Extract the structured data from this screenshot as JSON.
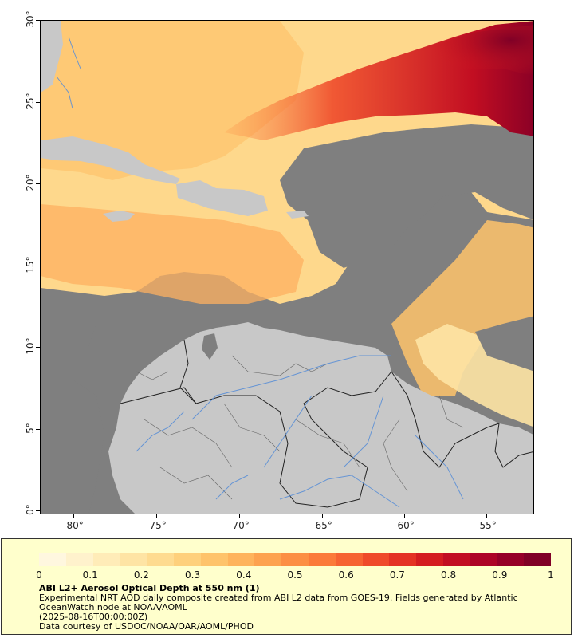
{
  "map": {
    "y_ticks": [
      "30°",
      "25°",
      "20°",
      "15°",
      "10°",
      "5°",
      "0°"
    ],
    "x_ticks": [
      "-80°",
      "-75°",
      "-70°",
      "-65°",
      "-60°",
      "-55°"
    ],
    "land_color": "#c8c8c8",
    "nodata_color": "#7f7f7f"
  },
  "legend": {
    "colorbar_ticks": [
      "0",
      "0.1",
      "0.2",
      "0.3",
      "0.4",
      "0.5",
      "0.6",
      "0.7",
      "0.8",
      "0.9",
      "1"
    ],
    "colors": [
      "#fff7df",
      "#fff2cc",
      "#ffecb8",
      "#fee4a4",
      "#fedb90",
      "#fed07c",
      "#fec36b",
      "#feb35c",
      "#fda24f",
      "#fc8f44",
      "#fb7a3a",
      "#f66332",
      "#ef4a2a",
      "#e43224",
      "#d41c20",
      "#c20e22",
      "#ad0426",
      "#960028",
      "#800026"
    ],
    "title": "ABI L2+ Aerosol Optical Depth at 550 nm (1)",
    "line1": "Experimental NRT AOD daily composite created from ABI L2 data from GOES-19. Fields generated by Atlantic OceanWatch node at NOAA/AOML",
    "line2": "(2025-08-16T00:00:00Z)",
    "line3": "Data courtesy of USDOC/NOAA/OAR/AOML/PHOD"
  }
}
